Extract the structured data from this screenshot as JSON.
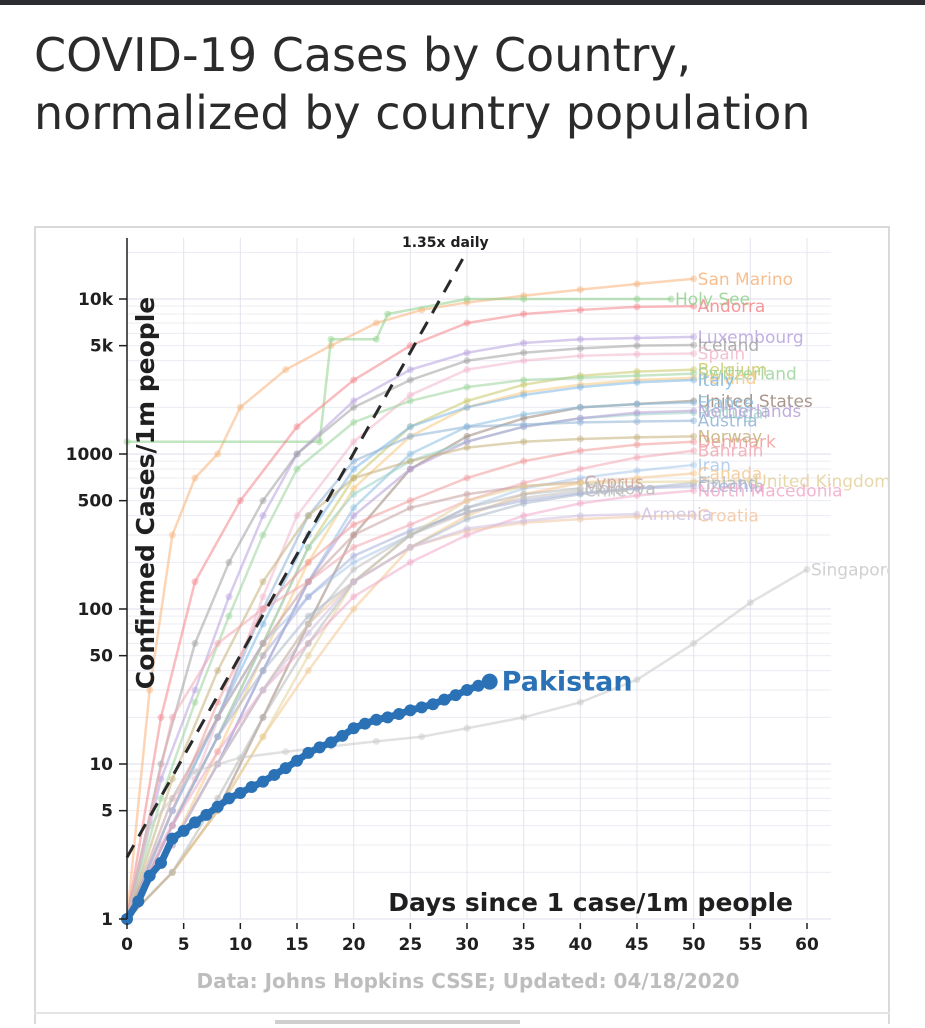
{
  "title": "COVID-19 Cases by Country, normalized by country population",
  "chart_data": {
    "type": "line",
    "xlabel": "Days since 1 case/1m people",
    "ylabel": "Confirmed Cases/1m people",
    "y_scale": "log",
    "xlim": [
      0,
      60
    ],
    "ylim": [
      1,
      20000
    ],
    "x_ticks": [
      "0",
      "5",
      "10",
      "15",
      "20",
      "25",
      "30",
      "35",
      "40",
      "45",
      "50",
      "55",
      "60"
    ],
    "y_ticks": [
      {
        "value": 1,
        "label": "1"
      },
      {
        "value": 5,
        "label": "5"
      },
      {
        "value": 10,
        "label": "10"
      },
      {
        "value": 50,
        "label": "50"
      },
      {
        "value": 100,
        "label": "100"
      },
      {
        "value": 500,
        "label": "500"
      },
      {
        "value": 1000,
        "label": "1000"
      },
      {
        "value": 5000,
        "label": "5k"
      },
      {
        "value": 10000,
        "label": "10k"
      }
    ],
    "reference_line": {
      "label": "1.35x daily",
      "rate": 1.35,
      "start": 2.5,
      "color": "#2a2a2a"
    },
    "source": "Data: Johns Hopkins CSSE; Updated: 04/18/2020",
    "highlight": {
      "name": "Pakistan",
      "color": "#2a72b5",
      "x": [
        0,
        1,
        2,
        3,
        4,
        5,
        6,
        7,
        8,
        9,
        10,
        11,
        12,
        13,
        14,
        15,
        16,
        17,
        18,
        19,
        20,
        21,
        22,
        23,
        24,
        25,
        26,
        27,
        28,
        29,
        30,
        31,
        32
      ],
      "y": [
        1.0,
        1.3,
        1.9,
        2.3,
        3.3,
        3.7,
        4.2,
        4.7,
        5.3,
        6.0,
        6.5,
        7.1,
        7.7,
        8.5,
        9.4,
        10.5,
        11.8,
        12.8,
        13.8,
        15.2,
        17.0,
        18.2,
        19.3,
        20.0,
        21.0,
        22.2,
        23.2,
        24.3,
        26.0,
        27.8,
        30.0,
        32.0,
        34.0
      ]
    },
    "series": [
      {
        "name": "San Marino",
        "color": "#f7b37a",
        "x": [
          0,
          2,
          4,
          6,
          8,
          10,
          14,
          18,
          22,
          26,
          30,
          35,
          40,
          45,
          50
        ],
        "y": [
          1,
          30,
          300,
          700,
          1000,
          2000,
          3500,
          5000,
          7000,
          8500,
          9500,
          10500,
          11500,
          12500,
          13500
        ]
      },
      {
        "name": "Holy See",
        "color": "#8fd28a",
        "x": [
          0,
          17,
          18,
          22,
          23,
          30,
          35,
          45,
          48
        ],
        "y": [
          1200,
          1200,
          5500,
          5500,
          8000,
          10000,
          10000,
          10000,
          10000
        ]
      },
      {
        "name": "Andorra",
        "color": "#f4858a",
        "x": [
          0,
          3,
          6,
          10,
          15,
          20,
          25,
          30,
          35,
          40,
          45,
          50
        ],
        "y": [
          1,
          20,
          150,
          500,
          1500,
          3000,
          5000,
          7000,
          8000,
          8500,
          8900,
          9000
        ]
      },
      {
        "name": "Luxembourg",
        "color": "#b7a2de",
        "x": [
          0,
          3,
          6,
          9,
          12,
          15,
          20,
          25,
          30,
          35,
          40,
          45,
          50
        ],
        "y": [
          1,
          8,
          30,
          120,
          400,
          1000,
          2200,
          3500,
          4500,
          5200,
          5500,
          5600,
          5700
        ]
      },
      {
        "name": "Iceland",
        "color": "#a0a0a0",
        "x": [
          0,
          3,
          6,
          9,
          12,
          15,
          20,
          25,
          30,
          35,
          40,
          45,
          50
        ],
        "y": [
          1,
          10,
          60,
          200,
          500,
          1000,
          2000,
          3000,
          4000,
          4500,
          4800,
          5000,
          5050
        ]
      },
      {
        "name": "Spain",
        "color": "#f1b6cc",
        "x": [
          0,
          3,
          6,
          9,
          12,
          15,
          20,
          25,
          30,
          35,
          40,
          45,
          50
        ],
        "y": [
          1,
          3,
          8,
          30,
          120,
          400,
          1200,
          2400,
          3500,
          4000,
          4300,
          4400,
          4450
        ]
      },
      {
        "name": "Belgium",
        "color": "#c9c96a",
        "x": [
          0,
          4,
          8,
          12,
          16,
          20,
          25,
          30,
          35,
          40,
          45,
          50
        ],
        "y": [
          1,
          4,
          15,
          60,
          250,
          700,
          1500,
          2200,
          2800,
          3200,
          3400,
          3500
        ]
      },
      {
        "name": "Switzerland",
        "color": "#9ad49a",
        "x": [
          0,
          3,
          6,
          9,
          12,
          15,
          20,
          25,
          30,
          35,
          40,
          45,
          50
        ],
        "y": [
          1,
          6,
          25,
          90,
          300,
          800,
          1600,
          2200,
          2700,
          3000,
          3100,
          3200,
          3300
        ]
      },
      {
        "name": "Ireland",
        "color": "#f7c97e",
        "x": [
          0,
          4,
          8,
          12,
          16,
          20,
          25,
          30,
          35,
          40,
          45,
          50
        ],
        "y": [
          1,
          3,
          12,
          50,
          200,
          600,
          1300,
          2000,
          2500,
          2800,
          3000,
          3100
        ]
      },
      {
        "name": "Italy",
        "color": "#7fb8e6",
        "x": [
          0,
          4,
          8,
          12,
          16,
          20,
          25,
          30,
          35,
          40,
          45,
          50
        ],
        "y": [
          1,
          5,
          20,
          80,
          300,
          800,
          1500,
          2000,
          2400,
          2700,
          2900,
          3000
        ]
      },
      {
        "name": "United States",
        "color": "#9b8577",
        "x": [
          0,
          4,
          8,
          12,
          16,
          20,
          25,
          30,
          35,
          40,
          45,
          50
        ],
        "y": [
          1,
          2,
          5,
          20,
          80,
          300,
          800,
          1300,
          1700,
          2000,
          2100,
          2200
        ]
      },
      {
        "name": "France",
        "color": "#8cbfe0",
        "x": [
          0,
          4,
          8,
          12,
          16,
          20,
          25,
          30,
          35,
          40,
          45,
          50
        ],
        "y": [
          1,
          3,
          10,
          40,
          150,
          450,
          1000,
          1500,
          1800,
          2000,
          2100,
          2150
        ]
      },
      {
        "name": "Portugal",
        "color": "#9ad2c8",
        "x": [
          0,
          4,
          8,
          12,
          16,
          20,
          25,
          30,
          35,
          40,
          45,
          50
        ],
        "y": [
          1,
          4,
          15,
          60,
          250,
          550,
          900,
          1200,
          1500,
          1700,
          1800,
          1850
        ]
      },
      {
        "name": "Netherlands",
        "color": "#b59fd6",
        "x": [
          0,
          4,
          8,
          12,
          16,
          20,
          25,
          30,
          35,
          40,
          45,
          50
        ],
        "y": [
          1,
          3,
          10,
          40,
          150,
          400,
          800,
          1200,
          1500,
          1700,
          1850,
          1900
        ]
      },
      {
        "name": "Austria",
        "color": "#8fb3d6",
        "x": [
          0,
          4,
          8,
          12,
          16,
          20,
          25,
          30,
          35,
          40,
          45,
          50
        ],
        "y": [
          1,
          5,
          20,
          100,
          400,
          900,
          1300,
          1500,
          1550,
          1600,
          1620,
          1640
        ]
      },
      {
        "name": "Denmark",
        "color": "#f19a9a",
        "x": [
          0,
          4,
          8,
          12,
          16,
          20,
          25,
          30,
          35,
          40,
          45,
          50
        ],
        "y": [
          1,
          5,
          25,
          100,
          200,
          350,
          500,
          700,
          900,
          1050,
          1150,
          1200
        ]
      },
      {
        "name": "Norway",
        "color": "#c4b07a",
        "x": [
          0,
          4,
          8,
          12,
          16,
          20,
          25,
          30,
          35,
          40,
          45,
          50
        ],
        "y": [
          1,
          8,
          40,
          150,
          400,
          700,
          900,
          1100,
          1200,
          1250,
          1280,
          1300
        ]
      },
      {
        "name": "Bahrain",
        "color": "#f2a7b3",
        "x": [
          0,
          4,
          8,
          12,
          16,
          20,
          25,
          30,
          35,
          40,
          45,
          50
        ],
        "y": [
          1,
          20,
          60,
          100,
          150,
          250,
          350,
          500,
          650,
          800,
          950,
          1050
        ]
      },
      {
        "name": "Iran",
        "color": "#a9c8ea",
        "x": [
          0,
          4,
          8,
          12,
          16,
          20,
          25,
          30,
          35,
          40,
          45,
          50
        ],
        "y": [
          1,
          5,
          20,
          60,
          120,
          200,
          300,
          450,
          600,
          700,
          780,
          850
        ]
      },
      {
        "name": "Canada",
        "color": "#f5c78f",
        "x": [
          0,
          4,
          8,
          12,
          16,
          20,
          25,
          30,
          35,
          40,
          45,
          50
        ],
        "y": [
          1,
          2,
          5,
          15,
          40,
          100,
          250,
          400,
          550,
          650,
          700,
          750
        ]
      },
      {
        "name": "Cyprus",
        "color": "#c7a0a0",
        "x": [
          0,
          4,
          8,
          12,
          16,
          20,
          25,
          30,
          35,
          40
        ],
        "y": [
          1,
          6,
          20,
          60,
          150,
          300,
          450,
          550,
          620,
          660
        ]
      },
      {
        "name": "Finland",
        "color": "#aab8c8",
        "x": [
          0,
          4,
          8,
          12,
          16,
          20,
          25,
          30,
          35,
          40,
          45,
          50
        ],
        "y": [
          1,
          4,
          15,
          40,
          90,
          150,
          250,
          380,
          480,
          550,
          600,
          650
        ]
      },
      {
        "name": "Czechia",
        "color": "#a7b0d8",
        "x": [
          0,
          4,
          8,
          12,
          16,
          20,
          25,
          30,
          35,
          40,
          45,
          50
        ],
        "y": [
          1,
          4,
          15,
          50,
          120,
          220,
          320,
          420,
          500,
          560,
          600,
          620
        ]
      },
      {
        "name": "United Kingdom",
        "color": "#e4d19a",
        "x": [
          0,
          4,
          8,
          12,
          16,
          20,
          25,
          30,
          35,
          40,
          45,
          50,
          55
        ],
        "y": [
          1,
          2,
          5,
          15,
          50,
          150,
          300,
          500,
          620,
          650,
          660,
          665,
          670
        ]
      },
      {
        "name": "North Macedonia",
        "color": "#f1a9c8",
        "x": [
          0,
          4,
          8,
          12,
          16,
          20,
          25,
          30,
          35,
          40,
          45,
          50
        ],
        "y": [
          1,
          4,
          12,
          30,
          60,
          120,
          200,
          300,
          400,
          480,
          540,
          580
        ]
      },
      {
        "name": "Croatia",
        "color": "#f1c6a0",
        "x": [
          0,
          4,
          8,
          12,
          16,
          20,
          25,
          30,
          35,
          40,
          45,
          50
        ],
        "y": [
          1,
          3,
          10,
          30,
          80,
          150,
          250,
          320,
          360,
          380,
          395,
          400
        ]
      },
      {
        "name": "Moldova",
        "color": "#b8b8b8",
        "x": [
          0,
          4,
          8,
          12,
          16,
          20,
          25,
          30,
          35,
          40
        ],
        "y": [
          1,
          2,
          6,
          20,
          60,
          150,
          300,
          450,
          550,
          600
        ]
      },
      {
        "name": "Chile",
        "color": "#c0c0c0",
        "x": [
          0,
          4,
          8,
          12,
          16,
          20,
          25,
          30,
          35,
          40
        ],
        "y": [
          1,
          3,
          10,
          30,
          80,
          180,
          300,
          420,
          520,
          580
        ]
      },
      {
        "name": "Armenia",
        "color": "#cfc0e0",
        "x": [
          0,
          4,
          8,
          12,
          16,
          20,
          25,
          30,
          35,
          40,
          45
        ],
        "y": [
          1,
          3,
          10,
          30,
          70,
          150,
          250,
          330,
          370,
          400,
          410
        ]
      },
      {
        "name": "Singapore",
        "color": "#c8c8c8",
        "x": [
          0,
          2,
          6,
          10,
          14,
          18,
          22,
          26,
          30,
          35,
          40,
          45,
          50,
          55,
          60
        ],
        "y": [
          1,
          4,
          9,
          11,
          12,
          13,
          14,
          15,
          17,
          20,
          25,
          35,
          60,
          110,
          180
        ]
      }
    ]
  }
}
